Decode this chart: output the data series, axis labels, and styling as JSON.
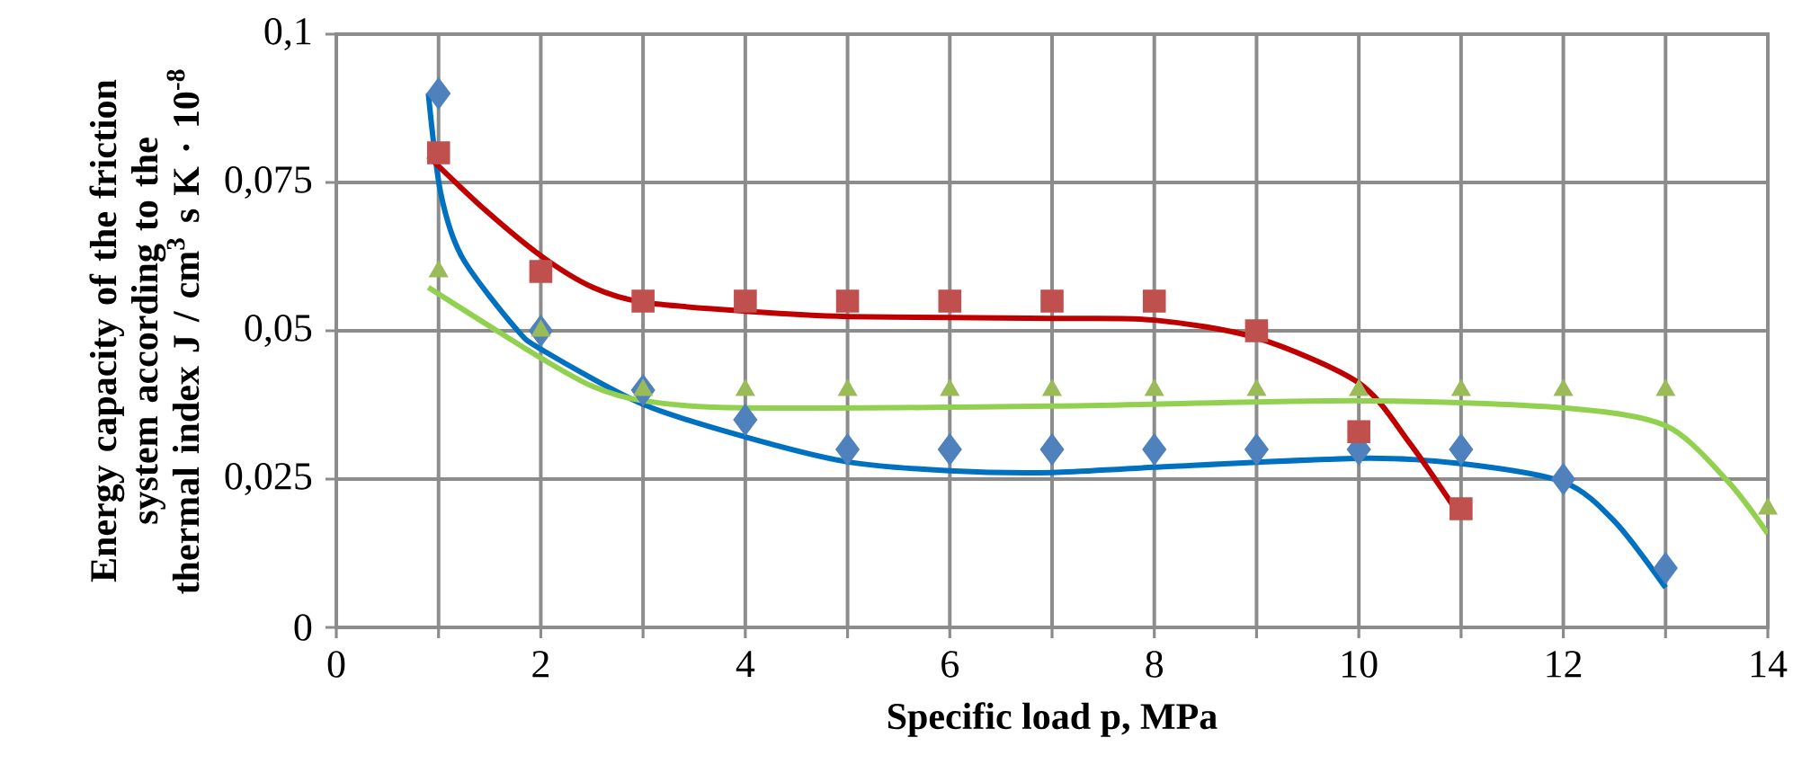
{
  "chart_data": {
    "type": "scatter",
    "xlabel": "Specific load p, MPa",
    "ylabel": "Energy capacity of the friction system according to the thermal index J / cm$^{3}$ s K · 10$^{-8}$",
    "xlim": [
      0,
      14
    ],
    "ylim": [
      0,
      0.1
    ],
    "xticks": [
      0,
      {
        "value": 1,
        "label": null
      },
      2,
      {
        "value": 3,
        "label": null
      },
      4,
      {
        "value": 5,
        "label": null
      },
      6,
      {
        "value": 7,
        "label": null
      },
      8,
      {
        "value": 9,
        "label": null
      },
      10,
      {
        "value": 11,
        "label": null
      },
      12,
      {
        "value": 13,
        "label": null
      },
      14
    ],
    "yticks": [
      0,
      {
        "value": 0.025,
        "label": "0,025"
      },
      {
        "value": 0.05,
        "label": "0,05"
      },
      {
        "value": 0.075,
        "label": "0,075"
      },
      {
        "value": 0.1,
        "label": "0,1"
      }
    ],
    "grid": true,
    "series": [
      {
        "type": "line",
        "color": "#0070c0",
        "marker": "none",
        "line_style": "solid",
        "x": [
          0.9,
          1.02,
          1.23,
          1.76,
          2.02,
          3,
          4,
          5,
          6,
          7,
          8,
          10,
          11,
          12,
          12.5,
          13
        ],
        "values": [
          0.09,
          0.0733,
          0.0624,
          0.0503,
          0.0467,
          0.0376,
          0.0321,
          0.0279,
          0.0264,
          0.0261,
          0.027,
          0.0285,
          0.0276,
          0.0245,
          0.0179,
          0.0067
        ]
      },
      {
        "type": "line",
        "color": "#c00000",
        "marker": "none",
        "line_style": "solid",
        "x": [
          0.9,
          1.46,
          2.02,
          2.51,
          3,
          4,
          5,
          7,
          8,
          9,
          10,
          10.5,
          11
        ],
        "values": [
          0.0794,
          0.0703,
          0.0624,
          0.0573,
          0.0548,
          0.0533,
          0.0524,
          0.0521,
          0.0518,
          0.0488,
          0.0412,
          0.031,
          0.0185
        ]
      },
      {
        "type": "line",
        "color": "#92d050",
        "marker": "none",
        "line_style": "solid",
        "x": [
          0.9,
          1.46,
          2.02,
          2.51,
          3,
          4,
          7,
          10,
          12,
          13,
          13.6,
          14
        ],
        "values": [
          0.0573,
          0.0512,
          0.0452,
          0.0406,
          0.0382,
          0.037,
          0.0373,
          0.0382,
          0.037,
          0.034,
          0.0248,
          0.0158
        ]
      },
      {
        "color": "#4f81bd",
        "marker": "diamond",
        "x": [
          1,
          2,
          3,
          4,
          5,
          6,
          7,
          8,
          9,
          10,
          11,
          12,
          13
        ],
        "values": [
          0.09,
          0.05,
          0.04,
          0.035,
          0.03,
          0.03,
          0.03,
          0.03,
          0.03,
          0.03,
          0.03,
          0.025,
          0.01
        ]
      },
      {
        "color": "#c0504d",
        "marker": "square",
        "x": [
          1,
          2,
          3,
          4,
          5,
          6,
          7,
          8,
          9,
          10,
          11
        ],
        "values": [
          0.08,
          0.06,
          0.055,
          0.055,
          0.055,
          0.055,
          0.055,
          0.055,
          0.05,
          0.033,
          0.02
        ]
      },
      {
        "color": "#9bbb59",
        "marker": "triangle",
        "x": [
          1,
          2,
          3,
          4,
          5,
          6,
          7,
          8,
          9,
          10,
          11,
          12,
          13,
          14
        ],
        "values": [
          0.06,
          0.05,
          0.04,
          0.04,
          0.04,
          0.04,
          0.04,
          0.04,
          0.04,
          0.04,
          0.04,
          0.04,
          0.04,
          0.02
        ]
      }
    ]
  }
}
